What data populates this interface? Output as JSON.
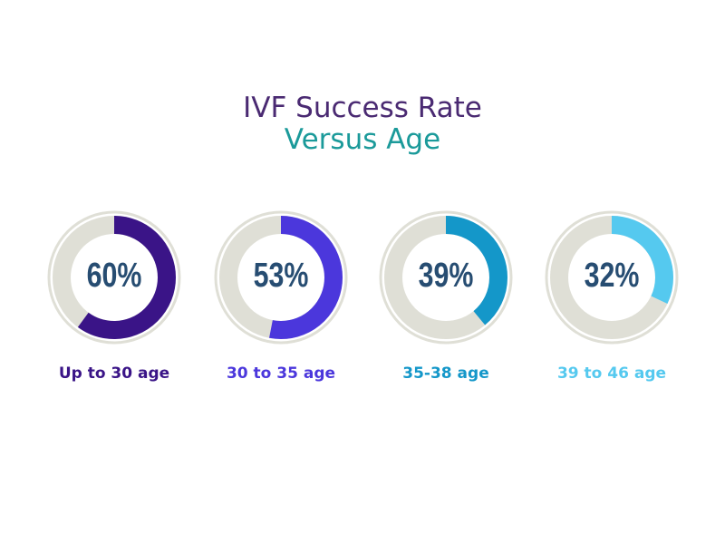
{
  "chart_data": {
    "type": "donut",
    "title": "IVF Success Rate",
    "subtitle": "Versus Age",
    "categories": [
      "Up to 30 age",
      "30 to 35 age",
      "35-38 age",
      "39 to 46 age"
    ],
    "values": [
      60,
      53,
      39,
      32
    ],
    "labels": [
      "60%",
      "53%",
      "39%",
      "32%"
    ],
    "colors": [
      "#3a1487",
      "#4b37dc",
      "#1497c9",
      "#55c9ef"
    ],
    "track_color": "#dfdfd6",
    "value_color": "#274d72",
    "title_color": "#4a2a72",
    "subtitle_color": "#1b9a9a"
  }
}
